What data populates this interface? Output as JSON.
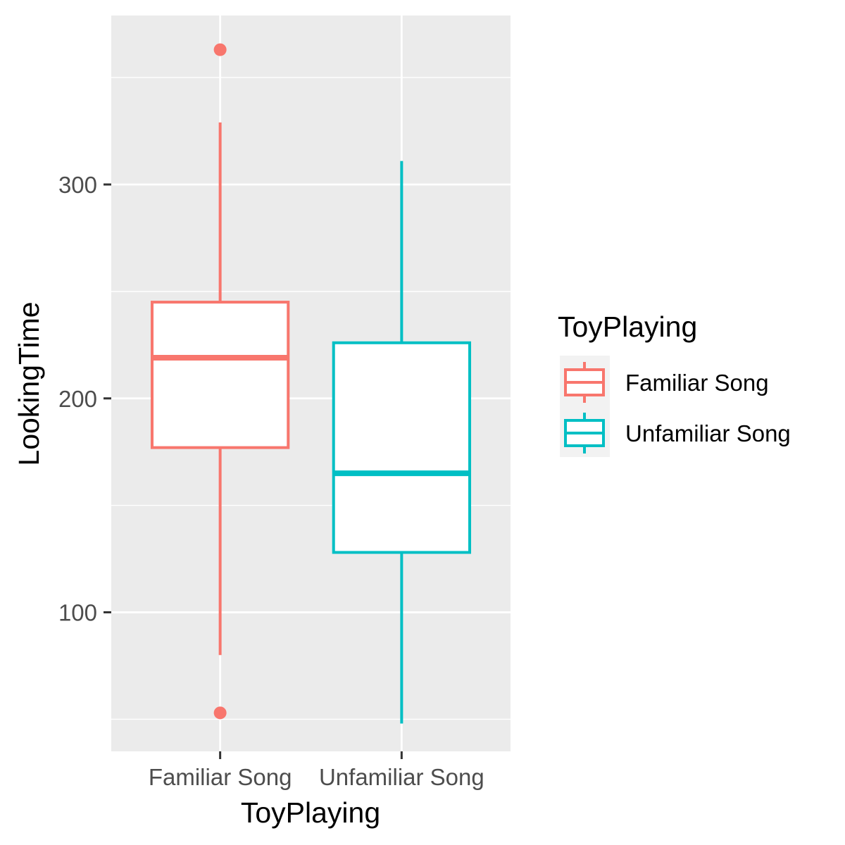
{
  "chart_data": {
    "type": "boxplot",
    "title": "",
    "xlabel": "ToyPlaying",
    "ylabel": "LookingTime",
    "categories": [
      "Familiar Song",
      "Unfamiliar Song"
    ],
    "ylim": [
      35,
      379
    ],
    "yticks": [
      100,
      200,
      300
    ],
    "ytick_labels": [
      "100",
      "200",
      "300"
    ],
    "grid": true,
    "legend": {
      "title": "ToyPlaying",
      "position": "right",
      "entries": [
        "Familiar Song",
        "Unfamiliar Song"
      ]
    },
    "series": [
      {
        "name": "Familiar Song",
        "color": "#F8766D",
        "whisker_low": 80,
        "q1": 177,
        "median": 219,
        "q3": 245,
        "whisker_high": 329,
        "outliers": [
          363,
          53
        ]
      },
      {
        "name": "Unfamiliar Song",
        "color": "#00BFC4",
        "whisker_low": 48,
        "q1": 128,
        "median": 165,
        "q3": 226,
        "whisker_high": 311,
        "outliers": []
      }
    ]
  }
}
